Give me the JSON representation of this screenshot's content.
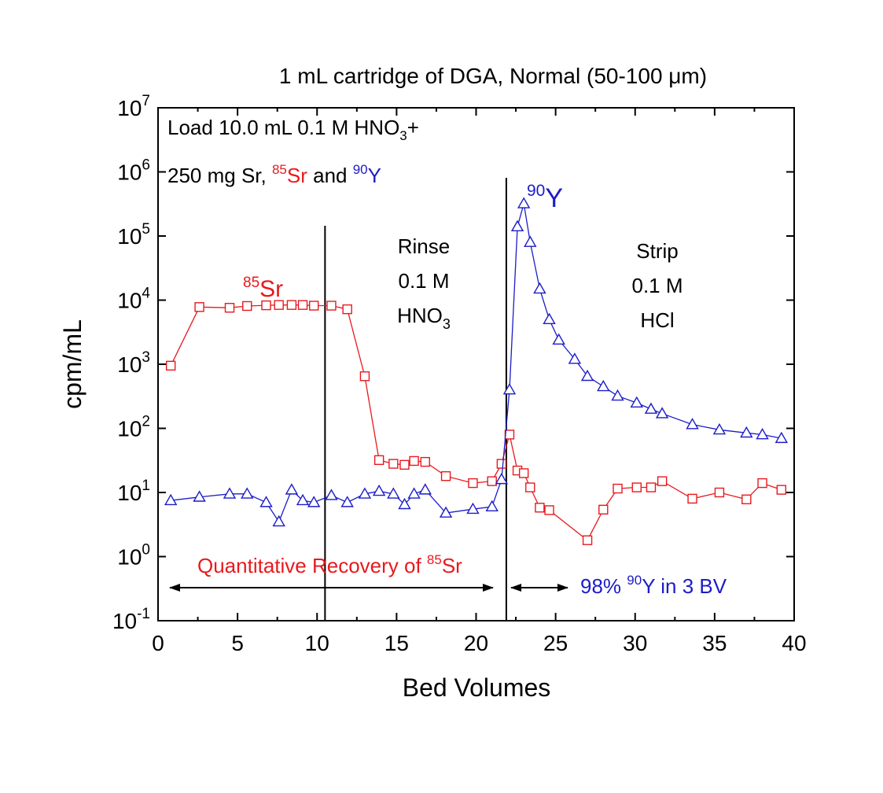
{
  "chart_data": {
    "type": "line",
    "title": "1 mL cartridge of DGA, Normal (50-100 μm)",
    "xlabel": "Bed Volumes",
    "ylabel": "cpm/mL",
    "xlim": [
      0,
      40
    ],
    "ylim_exp": [
      -1,
      7
    ],
    "y_scale": "log",
    "grid": false,
    "x_ticks": [
      "0",
      "5",
      "10",
      "15",
      "20",
      "25",
      "30",
      "35",
      "40"
    ],
    "y_tick_mantissa": "10",
    "y_tick_exponents": [
      "-1",
      "0",
      "1",
      "2",
      "3",
      "4",
      "5",
      "6",
      "7"
    ],
    "series": [
      {
        "color": "#e8191e",
        "marker": "square",
        "x": [
          0.8,
          2.6,
          4.5,
          5.6,
          6.8,
          7.6,
          8.4,
          9.1,
          9.8,
          10.9,
          11.9,
          13.0,
          13.9,
          14.8,
          15.5,
          16.1,
          16.8,
          18.1,
          19.8,
          21.0,
          21.6,
          22.1,
          22.6,
          23.0,
          23.4,
          24.0,
          24.6,
          27.0,
          28.0,
          28.9,
          30.1,
          31.0,
          31.7,
          33.6,
          35.3,
          37.0,
          38.0,
          39.2
        ],
        "y": [
          950,
          7800,
          7600,
          8100,
          8300,
          8400,
          8400,
          8400,
          8200,
          8200,
          7200,
          650,
          32,
          28,
          27,
          31,
          30,
          18,
          14,
          15,
          28,
          80,
          22,
          20,
          12,
          5.8,
          5.3,
          1.8,
          5.4,
          11.5,
          12,
          12,
          15,
          8,
          10,
          7.8,
          14,
          11
        ]
      },
      {
        "color": "#1c1cc8",
        "marker": "triangle",
        "x": [
          0.8,
          2.6,
          4.5,
          5.6,
          6.8,
          7.6,
          8.4,
          9.1,
          9.8,
          10.9,
          11.9,
          13.0,
          13.9,
          14.8,
          15.5,
          16.1,
          16.8,
          18.1,
          19.8,
          21.0,
          21.6,
          22.1,
          22.6,
          23.0,
          23.4,
          24.0,
          24.6,
          25.2,
          26.2,
          27.0,
          28.0,
          28.9,
          30.1,
          31.0,
          31.7,
          33.6,
          35.3,
          37.0,
          38.0,
          39.2
        ],
        "y": [
          7.5,
          8.5,
          9.5,
          9.5,
          7,
          3.5,
          11,
          7.5,
          7,
          9,
          7,
          9.5,
          10.5,
          9.5,
          6.5,
          9.5,
          11,
          4.8,
          5.5,
          6,
          16,
          400,
          140000,
          320000,
          80000,
          15000,
          5000,
          2400,
          1200,
          650,
          450,
          320,
          250,
          200,
          170,
          115,
          95,
          85,
          80,
          70
        ]
      }
    ],
    "vertical_lines_x": [
      10.5,
      21.9
    ],
    "annotations": {
      "load_line1": "Load 10.0 mL 0.1 M HNO",
      "load_line1_sub": "3",
      "load_line1_end": "+",
      "load_line2_start": "250 mg Sr, ",
      "load_line2_sup_sr": "85",
      "load_line2_sr": "Sr",
      "load_line2_and": " and ",
      "load_line2_sup_y": "90",
      "load_line2_y": "Y",
      "sr_label_sup": "85",
      "sr_label": "Sr",
      "y_label_sup": "90",
      "y_label": "Y",
      "rinse_line1": "Rinse",
      "rinse_line2": "0.1 M",
      "rinse_line3": "HNO",
      "rinse_line3_sub": "3",
      "strip_line1": "Strip",
      "strip_line2": "0.1 M",
      "strip_line3": "HCl",
      "recovery_text": "Quantitative Recovery of ",
      "recovery_sup": "85",
      "recovery_end": "Sr",
      "y_recovery_start": "98% ",
      "y_recovery_sup": "90",
      "y_recovery_end": "Y in 3 BV"
    }
  }
}
